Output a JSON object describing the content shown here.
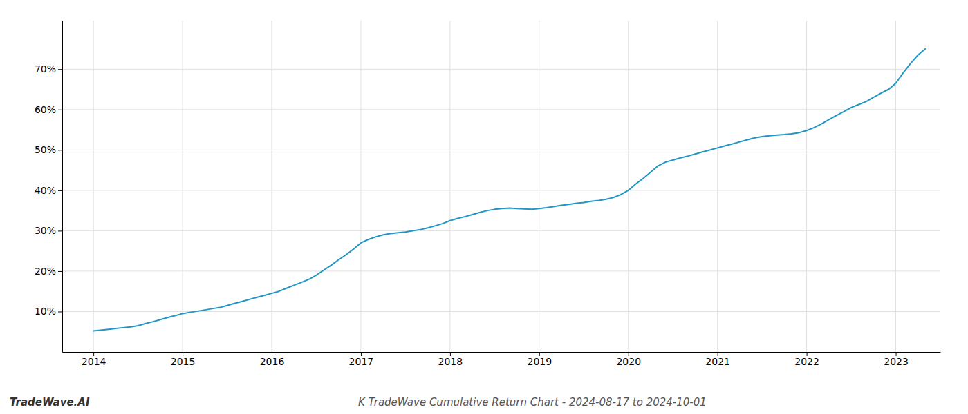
{
  "chart_data": {
    "type": "line",
    "title": "K TradeWave Cumulative Return Chart - 2024-08-17 to 2024-10-01",
    "annotations": [
      "TradeWave.AI"
    ],
    "color": "#2196c4",
    "grid": true,
    "x": [
      2014.0,
      2014.08,
      2014.17,
      2014.25,
      2014.33,
      2014.42,
      2014.5,
      2014.58,
      2014.67,
      2014.75,
      2014.83,
      2014.92,
      2015.0,
      2015.08,
      2015.17,
      2015.25,
      2015.33,
      2015.42,
      2015.5,
      2015.58,
      2015.67,
      2015.75,
      2015.83,
      2015.92,
      2016.0,
      2016.08,
      2016.17,
      2016.25,
      2016.33,
      2016.42,
      2016.5,
      2016.58,
      2016.67,
      2016.75,
      2016.83,
      2016.92,
      2017.0,
      2017.08,
      2017.17,
      2017.25,
      2017.33,
      2017.42,
      2017.5,
      2017.58,
      2017.67,
      2017.75,
      2017.83,
      2017.92,
      2018.0,
      2018.08,
      2018.17,
      2018.25,
      2018.33,
      2018.42,
      2018.5,
      2018.58,
      2018.67,
      2018.75,
      2018.83,
      2018.92,
      2019.0,
      2019.08,
      2019.17,
      2019.25,
      2019.33,
      2019.42,
      2019.5,
      2019.58,
      2019.67,
      2019.75,
      2019.83,
      2019.92,
      2020.0,
      2020.08,
      2020.17,
      2020.25,
      2020.33,
      2020.42,
      2020.5,
      2020.58,
      2020.67,
      2020.75,
      2020.83,
      2020.92,
      2021.0,
      2021.08,
      2021.17,
      2021.25,
      2021.33,
      2021.42,
      2021.5,
      2021.58,
      2021.67,
      2021.75,
      2021.83,
      2021.92,
      2022.0,
      2022.08,
      2022.17,
      2022.25,
      2022.33,
      2022.42,
      2022.5,
      2022.58,
      2022.67,
      2022.75,
      2022.83,
      2022.92,
      2023.0,
      2023.08,
      2023.17,
      2023.25,
      2023.33
    ],
    "values": [
      5.2,
      5.4,
      5.6,
      5.8,
      6.0,
      6.2,
      6.5,
      7.0,
      7.5,
      8.0,
      8.5,
      9.0,
      9.5,
      9.8,
      10.1,
      10.4,
      10.7,
      11.0,
      11.5,
      12.0,
      12.5,
      13.0,
      13.5,
      14.0,
      14.5,
      15.0,
      15.8,
      16.5,
      17.2,
      18.0,
      19.0,
      20.2,
      21.5,
      22.8,
      24.0,
      25.5,
      27.0,
      27.8,
      28.5,
      29.0,
      29.3,
      29.5,
      29.7,
      30.0,
      30.3,
      30.7,
      31.2,
      31.8,
      32.5,
      33.0,
      33.5,
      34.0,
      34.5,
      35.0,
      35.3,
      35.5,
      35.6,
      35.5,
      35.4,
      35.3,
      35.5,
      35.7,
      36.0,
      36.3,
      36.5,
      36.8,
      37.0,
      37.3,
      37.5,
      37.8,
      38.2,
      39.0,
      40.0,
      41.5,
      43.0,
      44.5,
      46.0,
      47.0,
      47.5,
      48.0,
      48.5,
      49.0,
      49.5,
      50.0,
      50.5,
      51.0,
      51.5,
      52.0,
      52.5,
      53.0,
      53.3,
      53.5,
      53.7,
      53.8,
      54.0,
      54.3,
      54.8,
      55.5,
      56.5,
      57.5,
      58.5,
      59.5,
      60.5,
      61.2,
      62.0,
      63.0,
      64.0,
      65.0,
      66.5,
      69.0,
      71.5,
      73.5,
      75.0
    ],
    "xlim": [
      2013.65,
      2023.5
    ],
    "ylim": [
      0,
      82
    ],
    "xticks": [
      2014,
      2015,
      2016,
      2017,
      2018,
      2019,
      2020,
      2021,
      2022,
      2023
    ],
    "yticks": [
      {
        "value": 10,
        "label": "10%"
      },
      {
        "value": 20,
        "label": "20%"
      },
      {
        "value": 30,
        "label": "30%"
      },
      {
        "value": 40,
        "label": "40%"
      },
      {
        "value": 50,
        "label": "50%"
      },
      {
        "value": 60,
        "label": "60%"
      },
      {
        "value": 70,
        "label": "70%"
      }
    ]
  }
}
